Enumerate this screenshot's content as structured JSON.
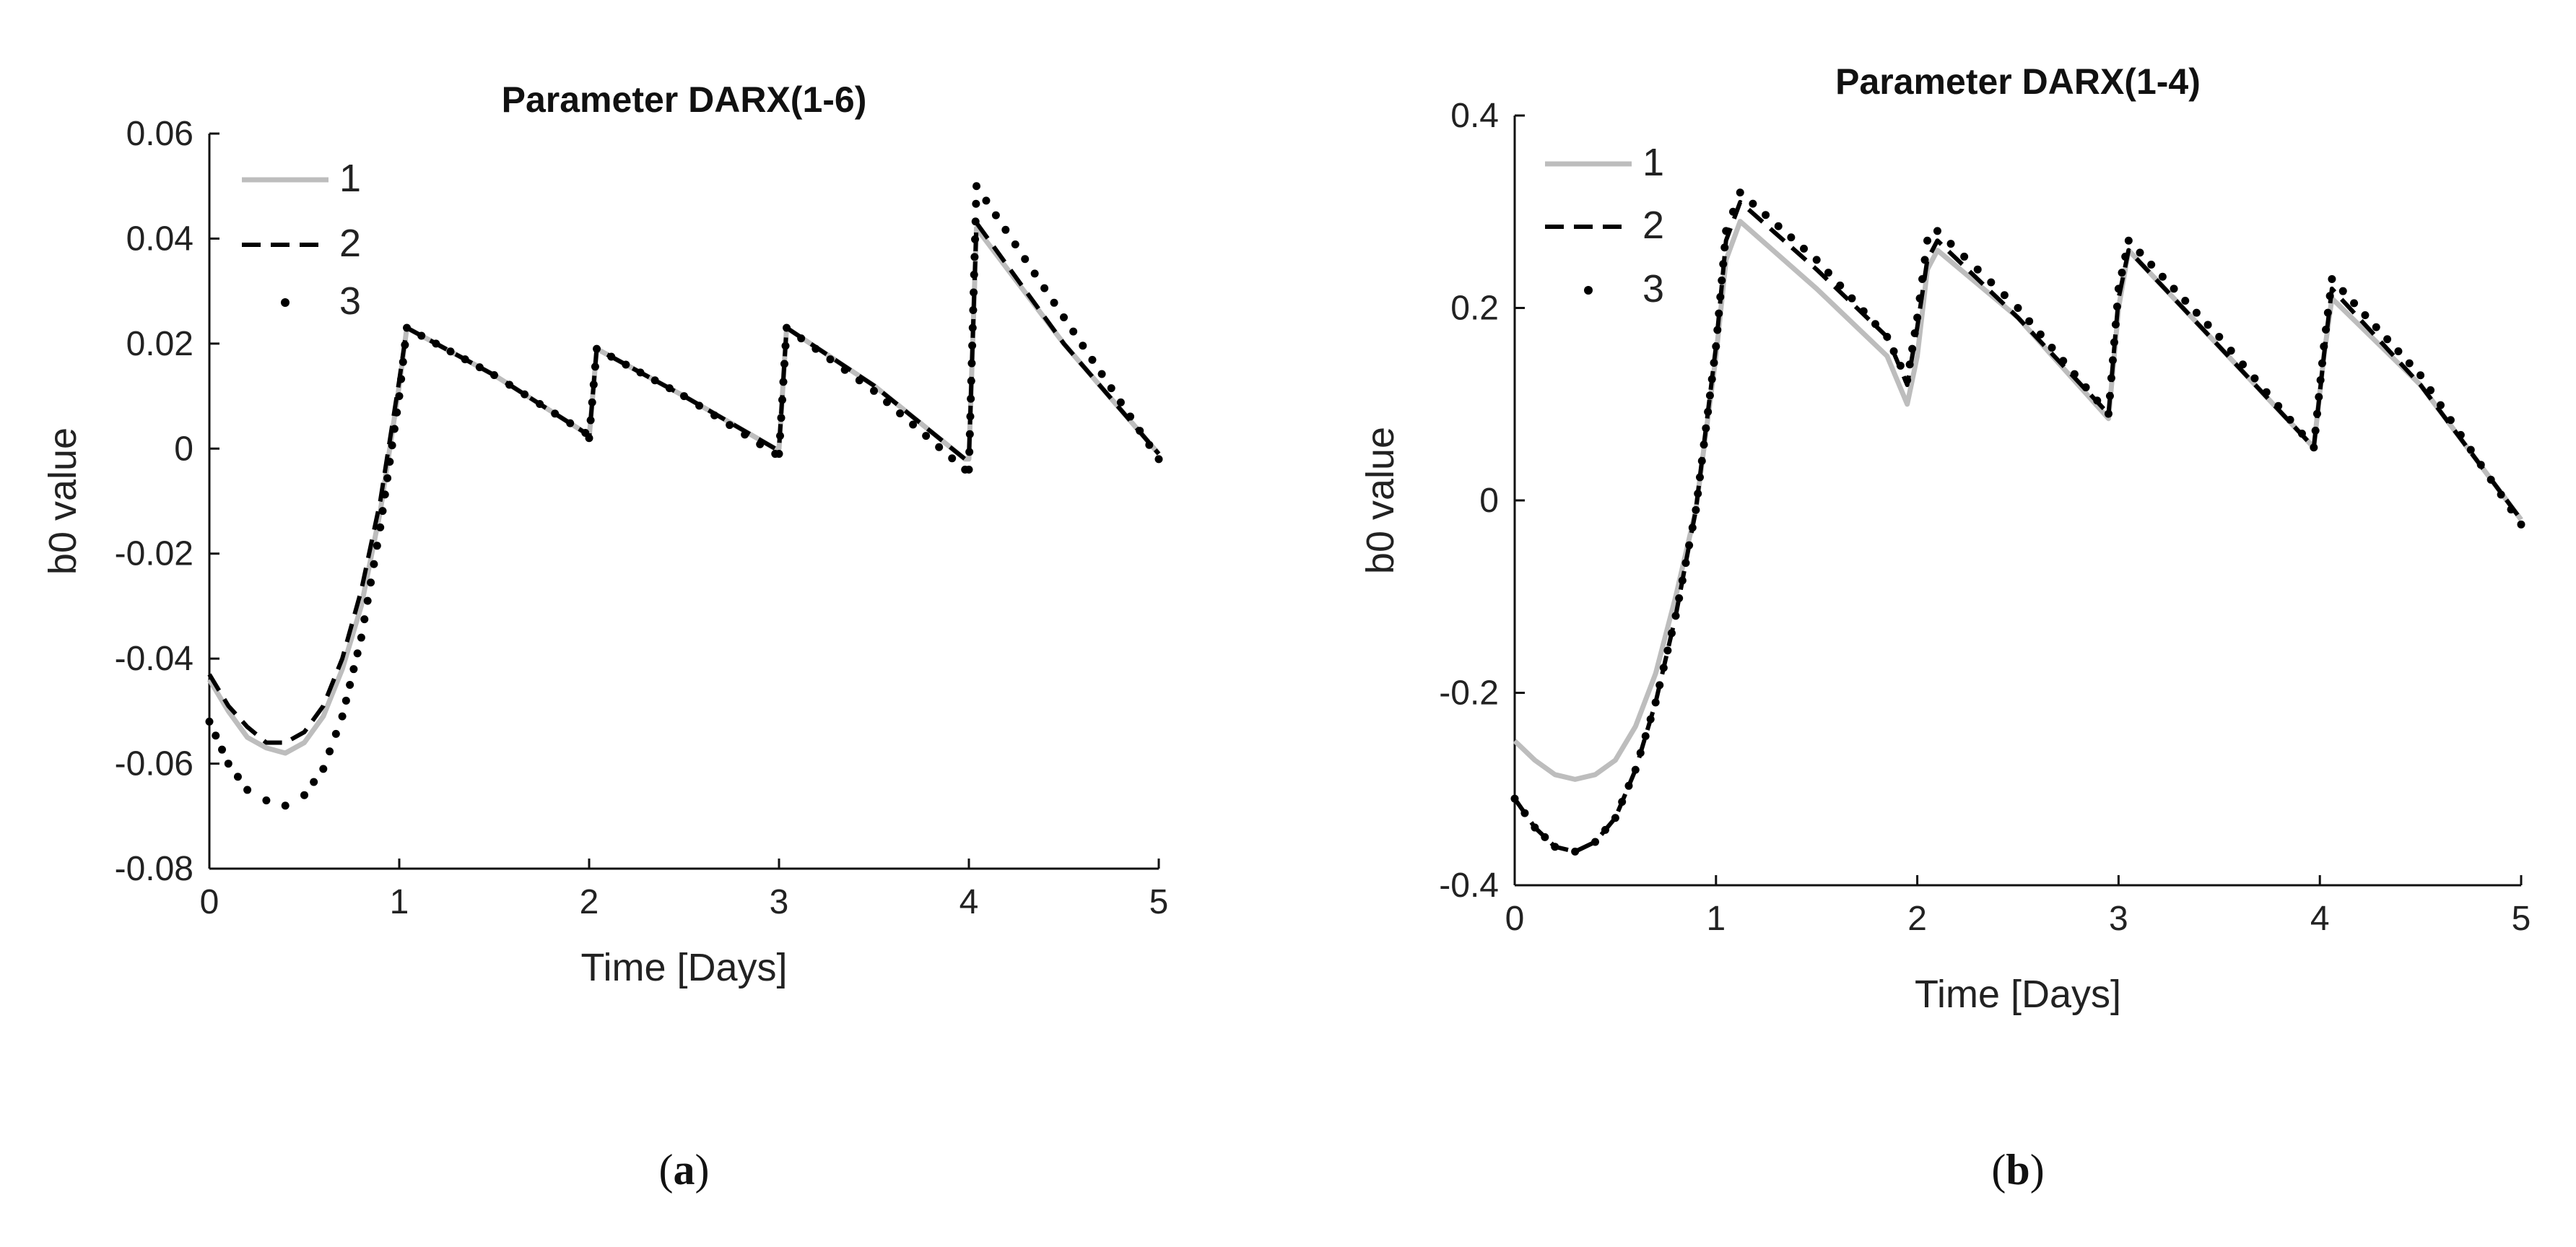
{
  "chart_data": [
    {
      "id": "a",
      "type": "line",
      "title": "Parameter DARX(1-6)",
      "xlabel": "Time [Days]",
      "ylabel": "b0 value",
      "xlim": [
        0,
        5
      ],
      "ylim": [
        -0.08,
        0.06
      ],
      "xticks": [
        0,
        1,
        2,
        3,
        4,
        5
      ],
      "xtick_labels": [
        "0",
        "1",
        "2",
        "3",
        "4",
        "5"
      ],
      "yticks": [
        -0.08,
        -0.06,
        -0.04,
        -0.02,
        0,
        0.02,
        0.04,
        0.06
      ],
      "ytick_labels": [
        "-0.08",
        "-0.06",
        "-0.04",
        "-0.02",
        "0",
        "0.02",
        "0.04",
        "0.06"
      ],
      "legend_position": "top-left",
      "grid": false,
      "caption_label": "a",
      "series": [
        {
          "name": "1",
          "style": "solid",
          "color": "#bdbdbd",
          "x": [
            0,
            0.1,
            0.2,
            0.3,
            0.4,
            0.5,
            0.6,
            0.7,
            0.8,
            0.9,
            1.0,
            1.04,
            1.5,
            1.98,
            2.0,
            2.04,
            2.5,
            2.98,
            3.0,
            3.04,
            3.5,
            3.98,
            4.0,
            4.04,
            4.5,
            5.0
          ],
          "y": [
            -0.044,
            -0.05,
            -0.055,
            -0.057,
            -0.058,
            -0.056,
            -0.051,
            -0.042,
            -0.03,
            -0.012,
            0.012,
            0.023,
            0.014,
            0.003,
            0.002,
            0.019,
            0.01,
            0.0,
            0.0,
            0.023,
            0.012,
            -0.002,
            -0.002,
            0.042,
            0.02,
            -0.001
          ]
        },
        {
          "name": "2",
          "style": "dashed",
          "color": "#000000",
          "x": [
            0,
            0.1,
            0.2,
            0.3,
            0.4,
            0.5,
            0.6,
            0.7,
            0.8,
            0.9,
            1.0,
            1.04,
            1.5,
            1.98,
            2.0,
            2.04,
            2.5,
            2.98,
            3.0,
            3.04,
            3.5,
            3.98,
            4.0,
            4.04,
            4.5,
            5.0
          ],
          "y": [
            -0.043,
            -0.049,
            -0.053,
            -0.056,
            -0.056,
            -0.054,
            -0.049,
            -0.04,
            -0.027,
            -0.01,
            0.013,
            0.023,
            0.014,
            0.003,
            0.002,
            0.019,
            0.01,
            0.0,
            0.0,
            0.023,
            0.012,
            -0.002,
            -0.002,
            0.043,
            0.02,
            -0.001
          ]
        },
        {
          "name": "3",
          "style": "dotted",
          "color": "#000000",
          "x": [
            0,
            0.1,
            0.2,
            0.3,
            0.4,
            0.5,
            0.6,
            0.7,
            0.8,
            0.9,
            1.0,
            1.04,
            1.5,
            1.98,
            2.0,
            2.04,
            2.5,
            2.98,
            3.0,
            3.04,
            3.5,
            3.98,
            4.0,
            4.04,
            4.5,
            5.0
          ],
          "y": [
            -0.052,
            -0.06,
            -0.065,
            -0.067,
            -0.068,
            -0.066,
            -0.061,
            -0.051,
            -0.036,
            -0.015,
            0.01,
            0.023,
            0.014,
            0.003,
            0.002,
            0.019,
            0.01,
            -0.001,
            -0.001,
            0.023,
            0.011,
            -0.004,
            -0.004,
            0.05,
            0.025,
            -0.002
          ]
        }
      ]
    },
    {
      "id": "b",
      "type": "line",
      "title": "Parameter DARX(1-4)",
      "xlabel": "Time [Days]",
      "ylabel": "b0 value",
      "xlim": [
        0,
        5
      ],
      "ylim": [
        -0.4,
        0.4
      ],
      "xticks": [
        0,
        1,
        2,
        3,
        4,
        5
      ],
      "xtick_labels": [
        "0",
        "1",
        "2",
        "3",
        "4",
        "5"
      ],
      "yticks": [
        -0.4,
        -0.2,
        0,
        0.2,
        0.4
      ],
      "ytick_labels": [
        "-0.4",
        "-0.2",
        "0",
        "0.2",
        "0.4"
      ],
      "legend_position": "top-left",
      "grid": false,
      "caption_label": "b",
      "series": [
        {
          "name": "1",
          "style": "solid",
          "color": "#bdbdbd",
          "x": [
            0,
            0.1,
            0.2,
            0.3,
            0.4,
            0.5,
            0.6,
            0.7,
            0.8,
            0.9,
            1.0,
            1.05,
            1.12,
            1.5,
            1.85,
            1.95,
            2.0,
            2.05,
            2.1,
            2.5,
            2.95,
            3.0,
            3.05,
            3.5,
            3.97,
            4.02,
            4.06,
            4.5,
            5.0
          ],
          "y": [
            -0.25,
            -0.27,
            -0.285,
            -0.29,
            -0.285,
            -0.27,
            -0.235,
            -0.18,
            -0.1,
            -0.01,
            0.15,
            0.25,
            0.29,
            0.22,
            0.15,
            0.1,
            0.15,
            0.24,
            0.26,
            0.19,
            0.085,
            0.2,
            0.26,
            0.16,
            0.055,
            0.15,
            0.21,
            0.12,
            -0.02
          ]
        },
        {
          "name": "2",
          "style": "dashed",
          "color": "#000000",
          "x": [
            0,
            0.1,
            0.2,
            0.3,
            0.4,
            0.5,
            0.6,
            0.7,
            0.8,
            0.9,
            1.0,
            1.05,
            1.12,
            1.5,
            1.85,
            1.95,
            2.0,
            2.05,
            2.1,
            2.5,
            2.95,
            3.0,
            3.05,
            3.5,
            3.97,
            4.02,
            4.06,
            4.5,
            5.0
          ],
          "y": [
            -0.31,
            -0.34,
            -0.36,
            -0.365,
            -0.355,
            -0.33,
            -0.28,
            -0.21,
            -0.12,
            -0.01,
            0.16,
            0.27,
            0.31,
            0.24,
            0.17,
            0.12,
            0.18,
            0.25,
            0.27,
            0.19,
            0.09,
            0.21,
            0.26,
            0.16,
            0.055,
            0.15,
            0.22,
            0.12,
            -0.02
          ]
        },
        {
          "name": "3",
          "style": "dotted",
          "color": "#000000",
          "x": [
            0,
            0.1,
            0.2,
            0.3,
            0.4,
            0.5,
            0.6,
            0.7,
            0.8,
            0.9,
            1.0,
            1.05,
            1.12,
            1.5,
            1.85,
            1.95,
            2.0,
            2.05,
            2.1,
            2.5,
            2.95,
            3.0,
            3.05,
            3.5,
            3.97,
            4.02,
            4.06,
            4.5,
            5.0
          ],
          "y": [
            -0.31,
            -0.34,
            -0.36,
            -0.365,
            -0.355,
            -0.33,
            -0.28,
            -0.21,
            -0.12,
            -0.01,
            0.16,
            0.28,
            0.32,
            0.25,
            0.17,
            0.125,
            0.19,
            0.27,
            0.28,
            0.2,
            0.09,
            0.22,
            0.27,
            0.17,
            0.055,
            0.16,
            0.23,
            0.13,
            -0.025
          ]
        }
      ]
    }
  ]
}
